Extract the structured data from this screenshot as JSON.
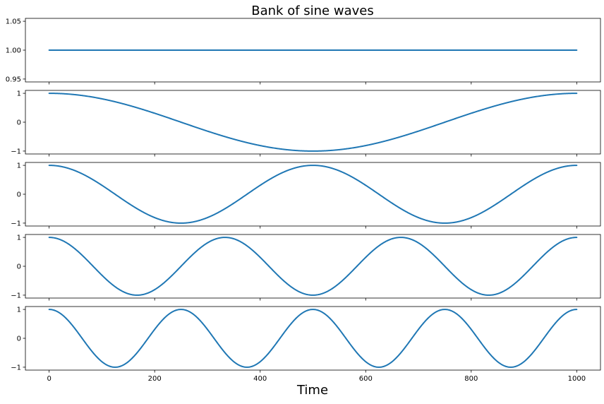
{
  "chart_data": {
    "type": "line",
    "title": "Bank of sine waves",
    "xlabel": "Time",
    "ylabel": "",
    "xlim": [
      -45,
      1045
    ],
    "xticks": [
      0,
      200,
      400,
      600,
      800,
      1000
    ],
    "x_tick_labels": [
      "0",
      "200",
      "400",
      "600",
      "800",
      "1000"
    ],
    "line_color": "#1f77b4",
    "grid": false,
    "legend": "none",
    "sampling": {
      "x_start": 0,
      "x_end": 1000,
      "count": 1001
    },
    "subplots": [
      {
        "formula": "cos(2*pi*0*t/1000)",
        "frequency_cycles": 0,
        "ylim": [
          0.945,
          1.055
        ],
        "yticks": [
          0.95,
          1.0,
          1.05
        ],
        "y_tick_labels": [
          "0.95",
          "1.00",
          "1.05"
        ]
      },
      {
        "formula": "cos(2*pi*1*t/1000)",
        "frequency_cycles": 1,
        "ylim": [
          -1.1,
          1.1
        ],
        "yticks": [
          -1,
          0,
          1
        ],
        "y_tick_labels": [
          "−1",
          "0",
          "1"
        ]
      },
      {
        "formula": "cos(2*pi*2*t/1000)",
        "frequency_cycles": 2,
        "ylim": [
          -1.1,
          1.1
        ],
        "yticks": [
          -1,
          0,
          1
        ],
        "y_tick_labels": [
          "−1",
          "0",
          "1"
        ]
      },
      {
        "formula": "cos(2*pi*3*t/1000)",
        "frequency_cycles": 3,
        "ylim": [
          -1.1,
          1.1
        ],
        "yticks": [
          -1,
          0,
          1
        ],
        "y_tick_labels": [
          "−1",
          "0",
          "1"
        ]
      },
      {
        "formula": "cos(2*pi*4*t/1000)",
        "frequency_cycles": 4,
        "ylim": [
          -1.1,
          1.1
        ],
        "yticks": [
          -1,
          0,
          1
        ],
        "y_tick_labels": [
          "−1",
          "0",
          "1"
        ]
      }
    ]
  }
}
